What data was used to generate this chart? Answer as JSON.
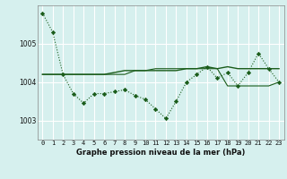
{
  "background_color": "#d6f0ee",
  "grid_color": "#ffffff",
  "line_color": "#1a5c1a",
  "title": "Graphe pression niveau de la mer (hPa)",
  "ylim": [
    1002.5,
    1006.0
  ],
  "yticks": [
    1003,
    1004,
    1005
  ],
  "xlim": [
    -0.5,
    23.5
  ],
  "xticks": [
    0,
    1,
    2,
    3,
    4,
    5,
    6,
    7,
    8,
    9,
    10,
    11,
    12,
    13,
    14,
    15,
    16,
    17,
    18,
    19,
    20,
    21,
    22,
    23
  ],
  "series1": [
    1005.8,
    1005.3,
    1004.2,
    1003.7,
    1003.45,
    1003.7,
    1003.7,
    1003.75,
    1003.8,
    1003.65,
    1003.55,
    1003.3,
    1003.05,
    1003.5,
    1004.0,
    1004.2,
    1004.4,
    1004.1,
    1004.25,
    1003.9,
    1004.25,
    1004.75,
    1004.35,
    1004.0
  ],
  "series2": [
    1004.2,
    1004.2,
    1004.2,
    1004.2,
    1004.2,
    1004.2,
    1004.2,
    1004.25,
    1004.3,
    1004.3,
    1004.3,
    1004.3,
    1004.3,
    1004.3,
    1004.35,
    1004.35,
    1004.4,
    1004.35,
    1004.4,
    1004.35,
    1004.35,
    1004.35,
    1004.35,
    1004.35
  ],
  "series3": [
    1004.2,
    1004.2,
    1004.2,
    1004.2,
    1004.2,
    1004.2,
    1004.2,
    1004.2,
    1004.2,
    1004.3,
    1004.3,
    1004.35,
    1004.35,
    1004.35,
    1004.35,
    1004.35,
    1004.35,
    1004.35,
    1003.9,
    1003.9,
    1003.9,
    1003.9,
    1003.9,
    1004.0
  ],
  "tick_fontsize": 5.0,
  "title_fontsize": 6.0
}
